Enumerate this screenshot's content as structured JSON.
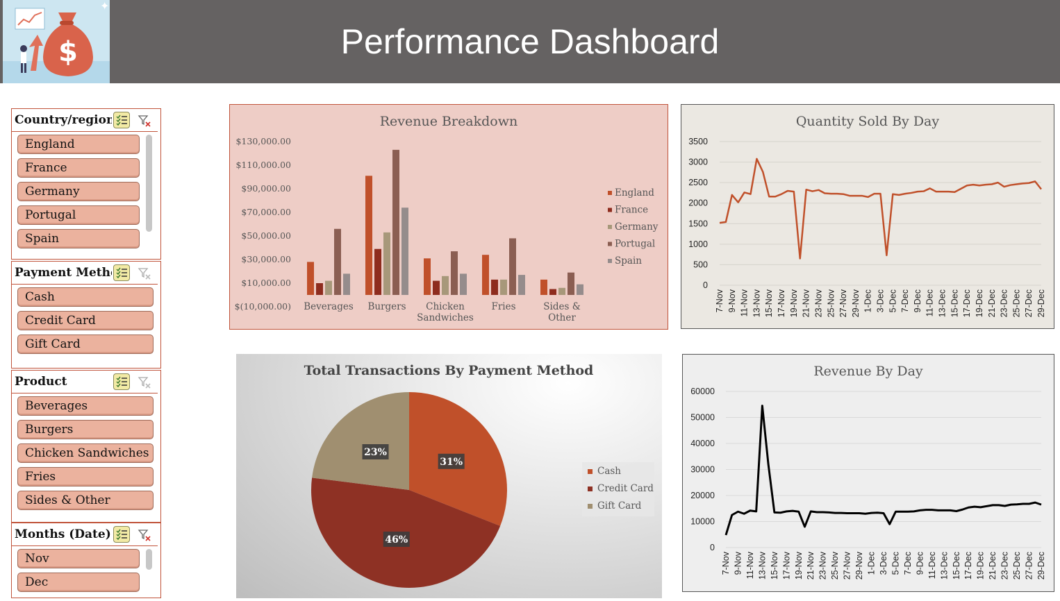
{
  "header": {
    "title": "Performance Dashboard"
  },
  "slicers": [
    {
      "title": "Country/region",
      "items": [
        "England",
        "France",
        "Germany",
        "Portugal",
        "Spain"
      ]
    },
    {
      "title": "Payment Method",
      "items": [
        "Cash",
        "Credit Card",
        "Gift Card"
      ]
    },
    {
      "title": "Product",
      "items": [
        "Beverages",
        "Burgers",
        "Chicken Sandwiches",
        "Fries",
        "Sides & Other"
      ]
    },
    {
      "title": "Months (Date)",
      "items": [
        "Nov",
        "Dec"
      ]
    }
  ],
  "colors": {
    "england": "#c0502a",
    "france": "#8e2c1e",
    "germany": "#a7987a",
    "portugal": "#8b5e52",
    "spain": "#958c8c",
    "cash": "#c0502a",
    "credit": "#8e3124",
    "gift": "#a08f70"
  },
  "chart_data": [
    {
      "type": "bar",
      "title": "Revenue Breakdown",
      "categories": [
        "Beverages",
        "Burgers",
        "Chicken\nSandwiches",
        "Fries",
        "Sides &\nOther"
      ],
      "ylim": [
        -10000,
        130000
      ],
      "yticks": [
        "$130,000.00",
        "$110,000.00",
        "$90,000.00",
        "$70,000.00",
        "$50,000.00",
        "$30,000.00",
        "$10,000.00",
        "$(10,000.00)"
      ],
      "legend_position": "right",
      "series": [
        {
          "name": "England",
          "values": [
            28000,
            101000,
            31000,
            34000,
            13000
          ]
        },
        {
          "name": "France",
          "values": [
            10000,
            39000,
            12000,
            13000,
            5000
          ]
        },
        {
          "name": "Germany",
          "values": [
            12000,
            53000,
            16000,
            13000,
            6000
          ]
        },
        {
          "name": "Portugal",
          "values": [
            56000,
            123000,
            37000,
            48000,
            19000
          ]
        },
        {
          "name": "Spain",
          "values": [
            18000,
            74000,
            18000,
            17000,
            9000
          ]
        }
      ]
    },
    {
      "type": "line",
      "title": "Quantity Sold By Day",
      "ylim": [
        0,
        3500
      ],
      "yticks": [
        "3500",
        "3000",
        "2500",
        "2000",
        "1500",
        "1000",
        "500",
        "0"
      ],
      "x_labels": [
        "7-Nov",
        "9-Nov",
        "11-Nov",
        "13-Nov",
        "15-Nov",
        "17-Nov",
        "19-Nov",
        "21-Nov",
        "23-Nov",
        "25-Nov",
        "27-Nov",
        "29-Nov",
        "1-Dec",
        "3-Dec",
        "5-Dec",
        "7-Dec",
        "9-Dec",
        "11-Dec",
        "13-Dec",
        "15-Dec",
        "17-Dec",
        "19-Dec",
        "21-Dec",
        "23-Dec",
        "25-Dec",
        "27-Dec",
        "29-Dec"
      ],
      "values": [
        1520,
        1540,
        2200,
        2020,
        2260,
        2220,
        3080,
        2760,
        2160,
        2160,
        2220,
        2300,
        2280,
        650,
        2330,
        2290,
        2320,
        2240,
        2230,
        2230,
        2220,
        2180,
        2180,
        2180,
        2150,
        2230,
        2230,
        730,
        2220,
        2200,
        2230,
        2250,
        2280,
        2290,
        2360,
        2280,
        2280,
        2280,
        2270,
        2350,
        2430,
        2450,
        2430,
        2450,
        2460,
        2500,
        2400,
        2440,
        2460,
        2480,
        2490,
        2530,
        2340
      ],
      "line_color": "#c0502a"
    },
    {
      "type": "pie",
      "title": "Total Transactions By Payment Method",
      "labels": [
        "Cash",
        "Credit Card",
        "Gift Card"
      ],
      "values": [
        31,
        46,
        23
      ],
      "value_labels": [
        "31%",
        "46%",
        "23%"
      ],
      "legend_position": "right"
    },
    {
      "type": "line",
      "title": "Revenue By Day",
      "ylim": [
        0,
        60000
      ],
      "yticks": [
        "60000",
        "50000",
        "40000",
        "30000",
        "20000",
        "10000",
        "0"
      ],
      "x_labels": [
        "7-Nov",
        "9-Nov",
        "11-Nov",
        "13-Nov",
        "15-Nov",
        "17-Nov",
        "19-Nov",
        "21-Nov",
        "23-Nov",
        "25-Nov",
        "27-Nov",
        "29-Nov",
        "1-Dec",
        "3-Dec",
        "5-Dec",
        "7-Dec",
        "9-Dec",
        "11-Dec",
        "13-Dec",
        "15-Dec",
        "17-Dec",
        "19-Dec",
        "21-Dec",
        "23-Dec",
        "25-Dec",
        "27-Dec",
        "29-Dec"
      ],
      "values": [
        4800,
        12500,
        13800,
        13000,
        14200,
        13900,
        54500,
        32000,
        13500,
        13400,
        13900,
        14100,
        13800,
        8000,
        13900,
        13600,
        13600,
        13500,
        13300,
        13300,
        13200,
        13200,
        13200,
        13000,
        13300,
        13400,
        13200,
        9000,
        13800,
        13800,
        13800,
        13900,
        14300,
        14500,
        14500,
        14300,
        14300,
        14300,
        14000,
        14600,
        15400,
        15700,
        15500,
        15900,
        16300,
        16300,
        16000,
        16500,
        16600,
        16800,
        16800,
        17300,
        16500
      ],
      "line_color": "#000000"
    }
  ]
}
